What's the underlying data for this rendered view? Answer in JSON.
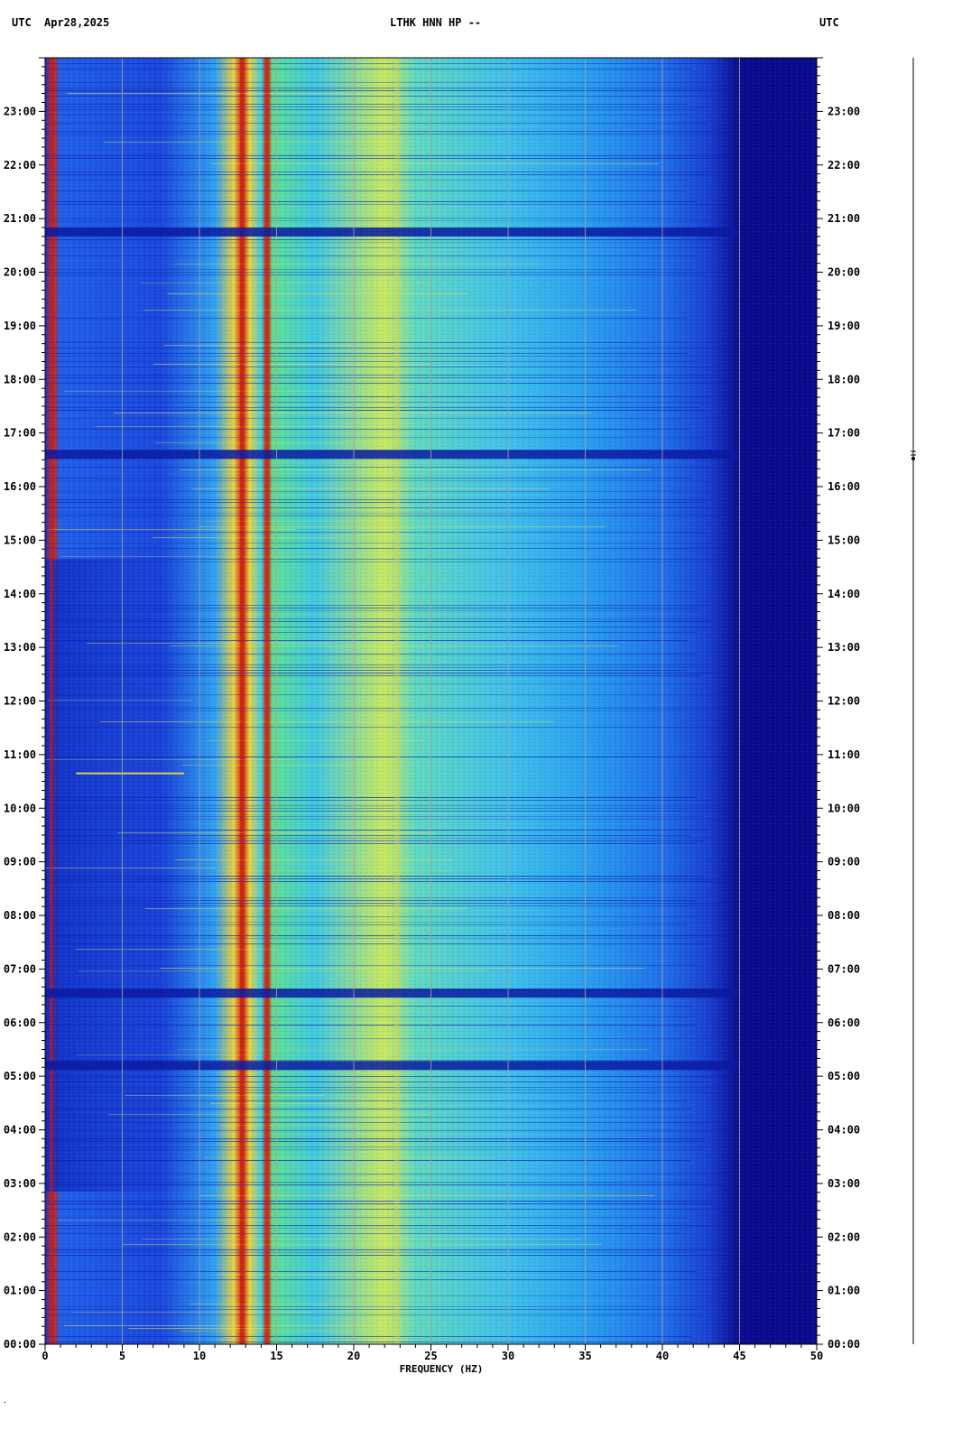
{
  "header": {
    "utc_left": "UTC",
    "date": "Apr28,2025",
    "title": "LTHK HNN HP --",
    "utc_right": "UTC"
  },
  "corner_mark": "·",
  "colors": {
    "background": "#ffffff",
    "deep_blue": "#0a0a8c",
    "blue": "#1a40e0",
    "cyan": "#20c0f0",
    "green": "#60e890",
    "yellow": "#e8e840",
    "orange": "#f08020",
    "red": "#d01010",
    "grid": "#a0a0a0"
  },
  "chart_data": {
    "type": "heatmap",
    "description_kind": "spectrogram",
    "xlabel": "FREQUENCY (HZ)",
    "x_range": [
      0,
      50
    ],
    "x_major_ticks": [
      0,
      5,
      10,
      15,
      20,
      25,
      30,
      35,
      40,
      45,
      50
    ],
    "x_tick_labels": [
      "0",
      "5",
      "10",
      "15",
      "20",
      "25",
      "30",
      "35",
      "40",
      "45",
      "50"
    ],
    "y_range_hours": [
      0,
      24
    ],
    "y_tick_labels": [
      "00:00",
      "01:00",
      "02:00",
      "03:00",
      "04:00",
      "05:00",
      "06:00",
      "07:00",
      "08:00",
      "09:00",
      "10:00",
      "11:00",
      "12:00",
      "13:00",
      "14:00",
      "15:00",
      "16:00",
      "17:00",
      "18:00",
      "19:00",
      "20:00",
      "21:00",
      "22:00",
      "23:00"
    ],
    "y_tick_hours": [
      0,
      1,
      2,
      3,
      4,
      5,
      6,
      7,
      8,
      9,
      10,
      11,
      12,
      13,
      14,
      15,
      16,
      17,
      18,
      19,
      20,
      21,
      22,
      23
    ],
    "grid": "vertical lines every 5 Hz",
    "strong_bands_hz": [
      0.4,
      12.8,
      14.4,
      22.8
    ],
    "signal_cutoff_hz": 45,
    "dark_event_hours": [
      16.6,
      20.75,
      6.55,
      5.2
    ],
    "bright_event_hours": [
      10.65
    ]
  }
}
